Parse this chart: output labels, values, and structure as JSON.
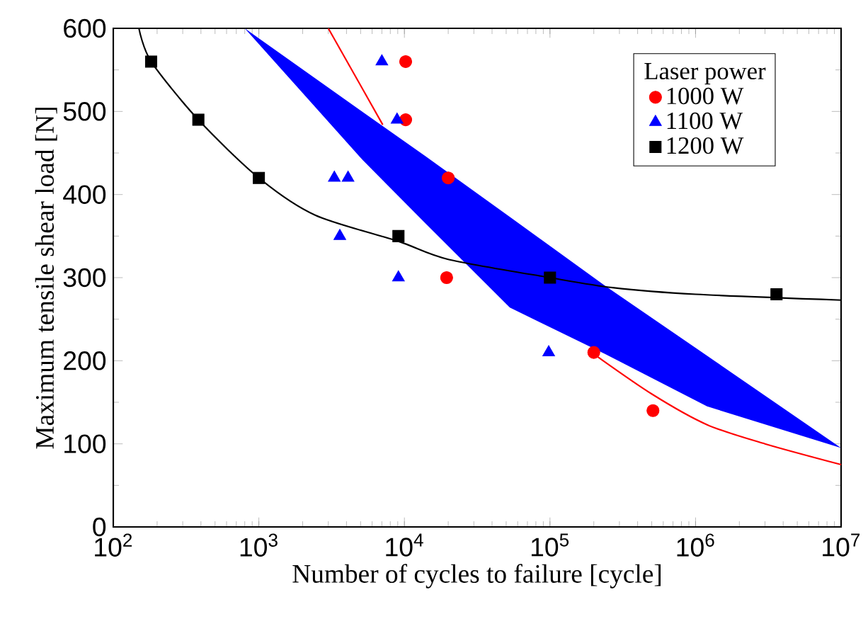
{
  "chart_data": {
    "type": "scatter",
    "xlabel": "Number of cycles to failure [cycle]",
    "ylabel": "Maximum tensile shear load [N]",
    "legend_title": "Laser power",
    "legend": "top right",
    "log": "x",
    "xlim": [
      100,
      10000000
    ],
    "ylim": [
      0,
      600
    ],
    "xticks": [
      {
        "value": 100,
        "label": "10$^{2}$"
      },
      {
        "value": 1000,
        "label": "10$^{3}$"
      },
      {
        "value": 10000,
        "label": "10$^{4}$"
      },
      {
        "value": 100000,
        "label": "10$^{5}$"
      },
      {
        "value": 1000000,
        "label": "10$^{6}$"
      },
      {
        "value": 10000000,
        "label": "10$^{7}$"
      }
    ],
    "yticks": [
      0,
      100,
      200,
      300,
      400,
      500,
      600
    ],
    "series": [
      {
        "type": "line",
        "color": "#ff0000",
        "x": [
          3000,
          7100,
          20000,
          60000,
          200000,
          500000,
          1200000,
          3000000,
          10000000
        ],
        "values": [
          600,
          484,
          null,
          null,
          208,
          160,
          123,
          100,
          75
        ]
      },
      {
        "type": "line",
        "color": "#0000ff",
        "x": [
          800,
          5200,
          14000,
          53000,
          240000,
          1200000,
          10000000
        ],
        "values": [
          null,
          null,
          null,
          null,
          null,
          null,
          null
        ],
        "upper": [
          600,
          499,
          446,
          373,
          290,
          206,
          95
        ],
        "lower": [
          600,
          441,
          365,
          264,
          208,
          145,
          95
        ]
      },
      {
        "type": "line",
        "color": "#000000",
        "x": [
          150,
          182,
          384,
          1000,
          2450,
          9000,
          20000,
          100000,
          270000,
          1000000,
          10000000
        ],
        "values": [
          600,
          560,
          490,
          420,
          375,
          344,
          322,
          300,
          288,
          280,
          273
        ]
      },
      {
        "name": "1000 W",
        "color": "#ff0000",
        "marker": "circle",
        "x": [
          10200,
          10200,
          20000,
          19500,
          200000,
          510000
        ],
        "values": [
          560,
          490,
          420,
          300,
          210,
          140
        ]
      },
      {
        "name": "1100 W",
        "color": "#0000ff",
        "marker": "triangle",
        "x": [
          7000,
          8900,
          3300,
          4100,
          3600,
          9100,
          98000
        ],
        "values": [
          560,
          490,
          420,
          420,
          350,
          300,
          210
        ]
      },
      {
        "name": "1200 W",
        "color": "#000000",
        "marker": "square",
        "x": [
          182,
          384,
          1000,
          9100,
          100000,
          3600000
        ],
        "values": [
          560,
          490,
          420,
          350,
          300,
          280
        ]
      }
    ]
  }
}
